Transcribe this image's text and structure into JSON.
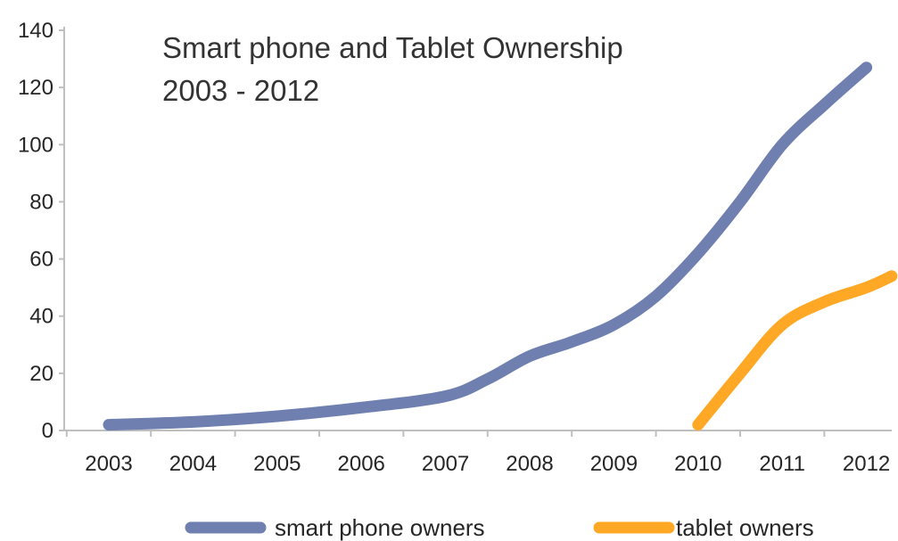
{
  "chart_data": {
    "type": "line",
    "title": "Smart phone and Tablet Ownership",
    "subtitle": "2003 - 2012",
    "xlabel": "",
    "ylabel": "",
    "categories": [
      "2003",
      "2004",
      "2005",
      "2006",
      "2007",
      "2008",
      "2009",
      "2010",
      "2011",
      "2012"
    ],
    "ylim": [
      0,
      140
    ],
    "yticks": [
      0,
      20,
      40,
      60,
      80,
      100,
      120,
      140
    ],
    "grid": false,
    "legend_position": "bottom",
    "series": [
      {
        "name": "smart phone owners",
        "color": "#6e7fb0",
        "x": [
          2003,
          2004,
          2005,
          2006,
          2007,
          2007.5,
          2008,
          2008.5,
          2009,
          2009.5,
          2010,
          2010.5,
          2011,
          2011.5,
          2012
        ],
        "y": [
          2,
          3,
          5,
          8,
          12,
          18,
          26,
          31,
          37,
          47,
          62,
          80,
          100,
          114,
          127
        ]
      },
      {
        "name": "tablet owners",
        "color": "#ffa826",
        "x": [
          2010,
          2010.5,
          2011,
          2011.5,
          2012,
          2012.3
        ],
        "y": [
          2,
          20,
          37,
          45,
          50,
          54
        ]
      }
    ]
  }
}
